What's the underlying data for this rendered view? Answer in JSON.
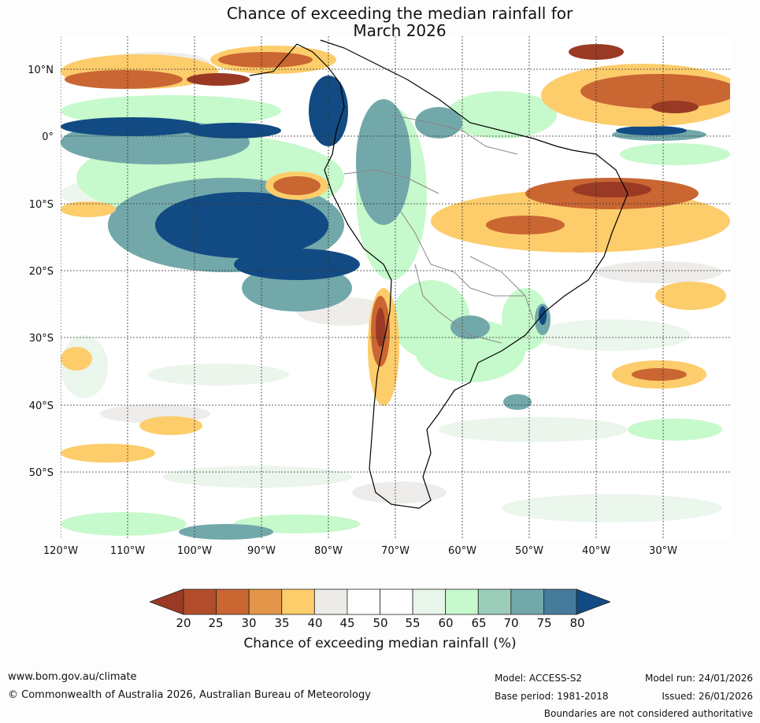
{
  "title_line1": "Chance of exceeding the median rainfall for",
  "title_line2": "March 2026",
  "lat_labels": [
    "10°N",
    "0°",
    "10°S",
    "20°S",
    "30°S",
    "40°S",
    "50°S"
  ],
  "lon_labels": [
    "120°W",
    "110°W",
    "100°W",
    "90°W",
    "80°W",
    "70°W",
    "60°W",
    "50°W",
    "40°W",
    "30°W"
  ],
  "colorbar": {
    "ticks": [
      "20",
      "25",
      "30",
      "35",
      "40",
      "45",
      "50",
      "55",
      "60",
      "65",
      "70",
      "75",
      "80"
    ],
    "colors": [
      "#9a3a24",
      "#b14d2b",
      "#c96632",
      "#e29548",
      "#fdcc6b",
      "#edebe8",
      "#ffffff",
      "#ffffff",
      "#e9f5ea",
      "#c6f9cb",
      "#9bcdba",
      "#73a8aa",
      "#457b9b",
      "#124b83"
    ],
    "label": "Chance of exceeding median rainfall (%)"
  },
  "map": {
    "regions": [
      {
        "label": "40",
        "color": "#fdcc6b"
      },
      {
        "label": "30",
        "color": "#c96632"
      },
      {
        "label": "20",
        "color": "#9a3a24"
      },
      {
        "label": "60",
        "color": "#c6f9cb"
      },
      {
        "label": "70",
        "color": "#73a8aa"
      },
      {
        "label": "80",
        "color": "#124b83"
      }
    ]
  },
  "footer": {
    "website": "www.bom.gov.au/climate",
    "copyright": "© Commonwealth of Australia 2026, Australian Bureau of Meteorology",
    "model": "Model: ACCESS-S2",
    "base_period": "Base period: 1981-2018",
    "model_run": "Model run: 24/01/2026",
    "issued": "Issued: 26/01/2026",
    "boundaries_note": "Boundaries are not considered authoritative"
  }
}
